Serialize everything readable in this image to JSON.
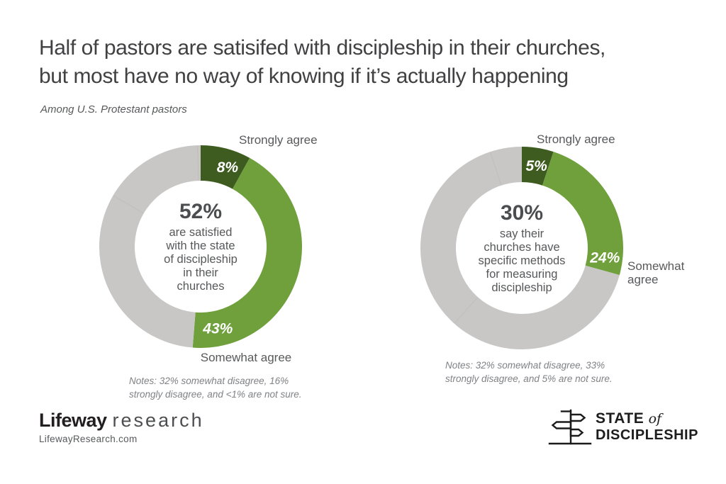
{
  "header": {
    "title": "Half of pastors are satisifed with discipleship in their churches,\nbut most have no way of knowing if it’s actually happening",
    "subtitle": "Among U.S. Protestant pastors"
  },
  "colors": {
    "dark_green": "#3e5c20",
    "medium_green": "#6fa03c",
    "gray": "#c8c7c6",
    "title_text": "#414042",
    "body_text": "#58595b",
    "notes_text": "#808285"
  },
  "chart_data": [
    {
      "type": "pie",
      "subtype": "donut",
      "center_value": "52%",
      "center_text": "are satisfied\nwith the state\nof discipleship\nin their\nchurches",
      "label_strongly": "Strongly agree",
      "label_somewhat": "Somewhat agree",
      "segments": [
        {
          "name": "Strongly agree",
          "value": 8,
          "color": "#3e5c20",
          "pct_label": "8%",
          "label_frac": 0.052
        },
        {
          "name": "Somewhat agree",
          "value": 43,
          "color": "#6fa03c",
          "pct_label": "43%",
          "label_frac": 0.467
        },
        {
          "name": "Somewhat disagree",
          "value": 32,
          "color": "#c8c7c6"
        },
        {
          "name": "Strongly disagree",
          "value": 16,
          "color": "#c8c7c6"
        },
        {
          "name": "Not sure",
          "value": 0.5,
          "color": "#c8c7c6"
        }
      ],
      "notes": "Notes: 32% somewhat disagree, 16%\nstrongly disagree, and <1% are not sure."
    },
    {
      "type": "pie",
      "subtype": "donut",
      "center_value": "30%",
      "center_text": "say their\nchurches have\nspecific methods\nfor measuring\ndiscipleship",
      "label_strongly": "Strongly agree",
      "label_somewhat": "Somewhat\nagree",
      "segments": [
        {
          "name": "Strongly agree",
          "value": 5,
          "color": "#3e5c20",
          "pct_label": "5%",
          "label_frac": 0.028
        },
        {
          "name": "Somewhat agree",
          "value": 24,
          "color": "#6fa03c",
          "pct_label": "24%",
          "label_frac": 0.268
        },
        {
          "name": "Somewhat disagree",
          "value": 32,
          "color": "#c8c7c6"
        },
        {
          "name": "Strongly disagree",
          "value": 33,
          "color": "#c8c7c6"
        },
        {
          "name": "Not sure",
          "value": 5,
          "color": "#c8c7c6"
        }
      ],
      "notes": "Notes: 32% somewhat disagree, 33%\nstrongly disagree, and 5% are not sure."
    }
  ],
  "footer": {
    "brand_bold": "Lifeway",
    "brand_light": "research",
    "website": "LifewayResearch.com",
    "sod": {
      "state": "STATE",
      "of": "of",
      "discipleship": "DISCIPLESHIP"
    }
  }
}
